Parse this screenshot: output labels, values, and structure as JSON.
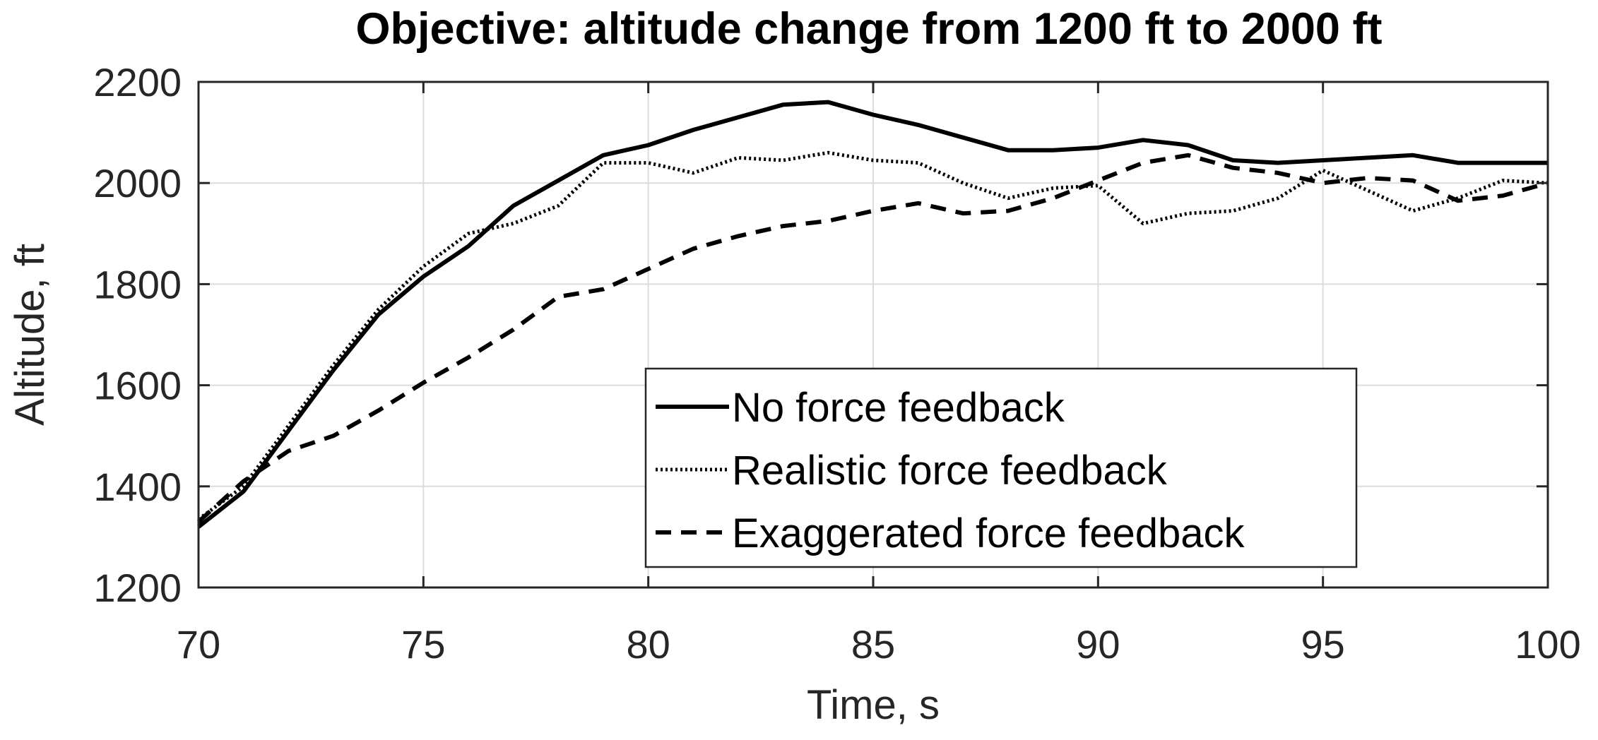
{
  "chart_data": {
    "type": "line",
    "title": "Objective: altitude change from 1200 ft to 2000 ft",
    "xlabel": "Time, s",
    "ylabel": "Altitude, ft",
    "xlim": [
      70,
      100
    ],
    "ylim": [
      1200,
      2200
    ],
    "xticks": [
      70,
      75,
      80,
      85,
      90,
      95,
      100
    ],
    "yticks": [
      1200,
      1400,
      1600,
      1800,
      2000,
      2200
    ],
    "xtick_labels": [
      "70",
      "75",
      "80",
      "85",
      "90",
      "95",
      "100"
    ],
    "ytick_labels": [
      "1200",
      "1400",
      "1600",
      "1800",
      "2000",
      "2200"
    ],
    "grid": true,
    "legend_position": "bottom-right",
    "x": [
      70,
      71,
      72,
      73,
      74,
      75,
      76,
      77,
      78,
      79,
      80,
      81,
      82,
      83,
      84,
      85,
      86,
      87,
      88,
      89,
      90,
      91,
      92,
      93,
      94,
      95,
      96,
      97,
      98,
      99,
      100
    ],
    "series": [
      {
        "name": "No force feedback",
        "style": "solid",
        "color": "#000000",
        "values": [
          1320,
          1390,
          1510,
          1630,
          1740,
          1815,
          1875,
          1955,
          2005,
          2055,
          2075,
          2105,
          2130,
          2155,
          2160,
          2135,
          2115,
          2090,
          2065,
          2065,
          2070,
          2085,
          2075,
          2045,
          2040,
          2045,
          2050,
          2055,
          2040,
          2040,
          2040
        ]
      },
      {
        "name": "Realistic force feedback",
        "style": "dotted",
        "color": "#000000",
        "values": [
          1335,
          1400,
          1520,
          1640,
          1750,
          1835,
          1900,
          1920,
          1955,
          2040,
          2040,
          2020,
          2050,
          2045,
          2060,
          2045,
          2040,
          2000,
          1970,
          1990,
          1995,
          1920,
          1940,
          1945,
          1970,
          2025,
          1985,
          1945,
          1970,
          2005,
          2000
        ]
      },
      {
        "name": "Exaggerated force feedback",
        "style": "dashed",
        "color": "#000000",
        "values": [
          1330,
          1410,
          1470,
          1500,
          1550,
          1605,
          1655,
          1710,
          1775,
          1790,
          1830,
          1870,
          1895,
          1915,
          1925,
          1945,
          1960,
          1940,
          1945,
          1970,
          2005,
          2040,
          2055,
          2030,
          2020,
          2000,
          2010,
          2005,
          1965,
          1975,
          2000
        ]
      }
    ]
  }
}
